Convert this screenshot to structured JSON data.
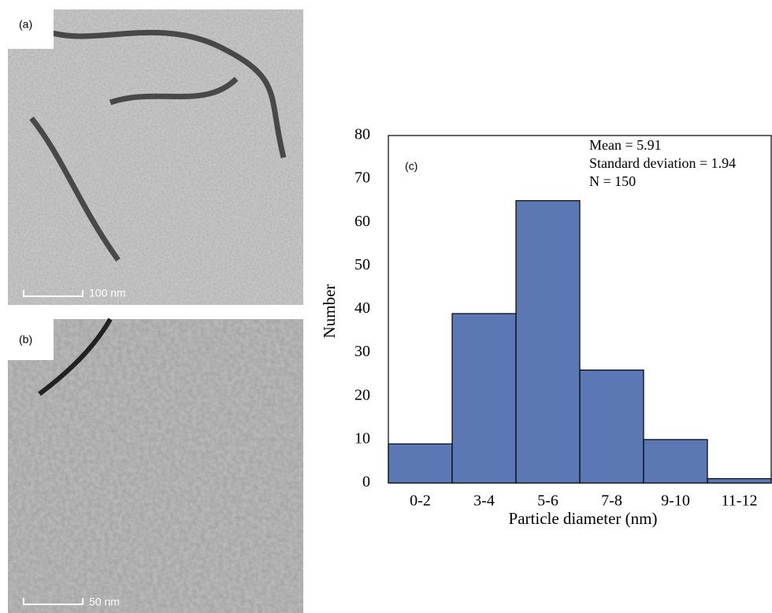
{
  "panels": [
    {
      "label": "(a)",
      "scale_bar": "100 nm"
    },
    {
      "label": "(b)",
      "scale_bar": "50 nm"
    }
  ],
  "chart_data": {
    "type": "bar",
    "panel_label": "(c)",
    "annotations": [
      "Mean = 5.91",
      "Standard deviation = 1.94",
      "N = 150"
    ],
    "x_label": "Particle diameter (nm)",
    "y_label": "Number",
    "categories": [
      "0-2",
      "3-4",
      "5-6",
      "7-8",
      "9-10",
      "11-12"
    ],
    "values": [
      9,
      39,
      65,
      26,
      10,
      1
    ],
    "color": "#5b78b4",
    "ylim": [
      0,
      80
    ],
    "yticks": [
      0,
      10,
      20,
      30,
      40,
      50,
      60,
      70,
      80
    ],
    "grid": false
  }
}
